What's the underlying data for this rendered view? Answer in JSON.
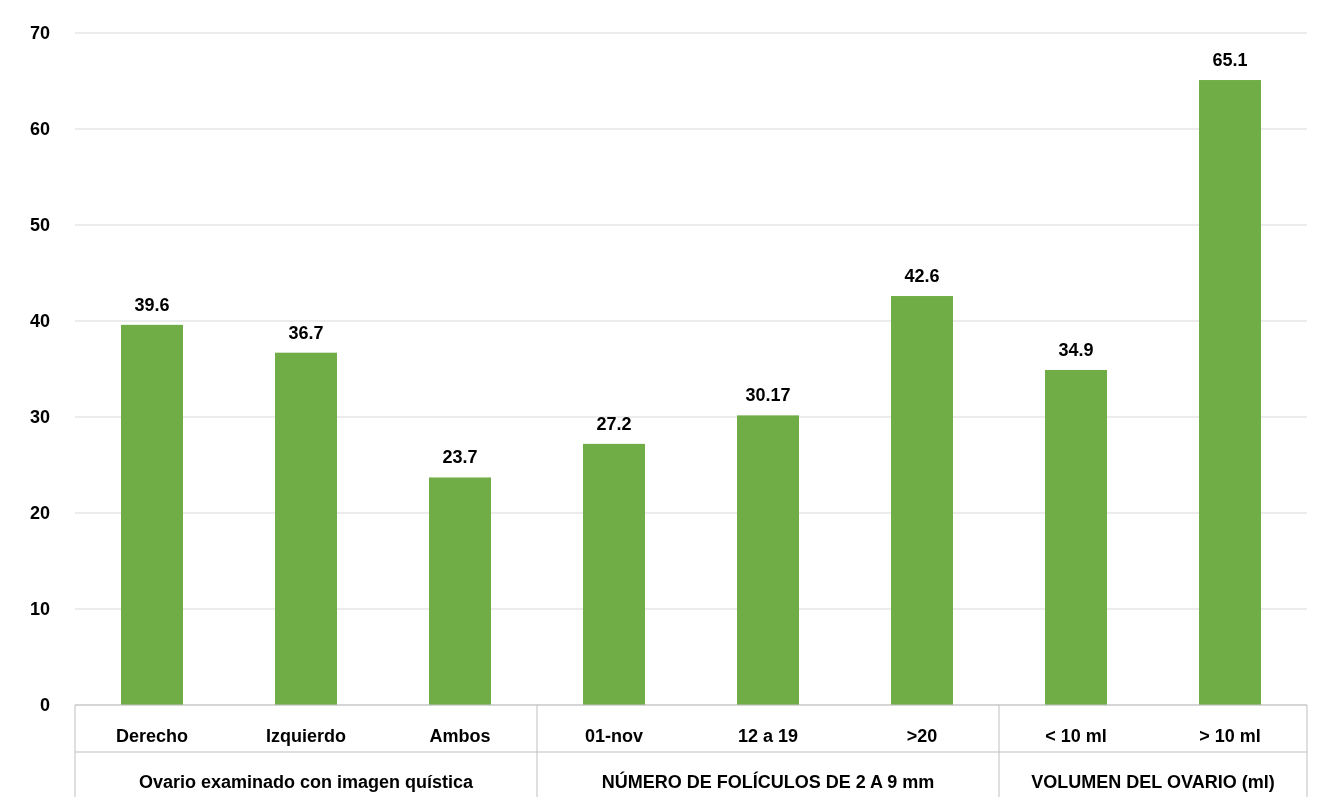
{
  "chart_data": {
    "type": "bar",
    "categories": [
      "Derecho",
      "Izquierdo",
      "Ambos",
      "01-nov",
      "12 a 19",
      ">20",
      "< 10 ml",
      "> 10 ml"
    ],
    "values": [
      39.6,
      36.7,
      23.7,
      27.2,
      30.17,
      42.6,
      34.9,
      65.1
    ],
    "color": "#70ad47",
    "ylim": [
      0,
      70
    ],
    "yticks": [
      0,
      10,
      20,
      30,
      40,
      50,
      60,
      70
    ],
    "grid": "y",
    "data_labels": true,
    "annotations": [
      "Ovario examinado con imagen quística",
      "NÚMERO DE FOLÍCULOS DE 2 A 9 mm",
      "VOLUMEN DEL OVARIO (ml)"
    ]
  }
}
